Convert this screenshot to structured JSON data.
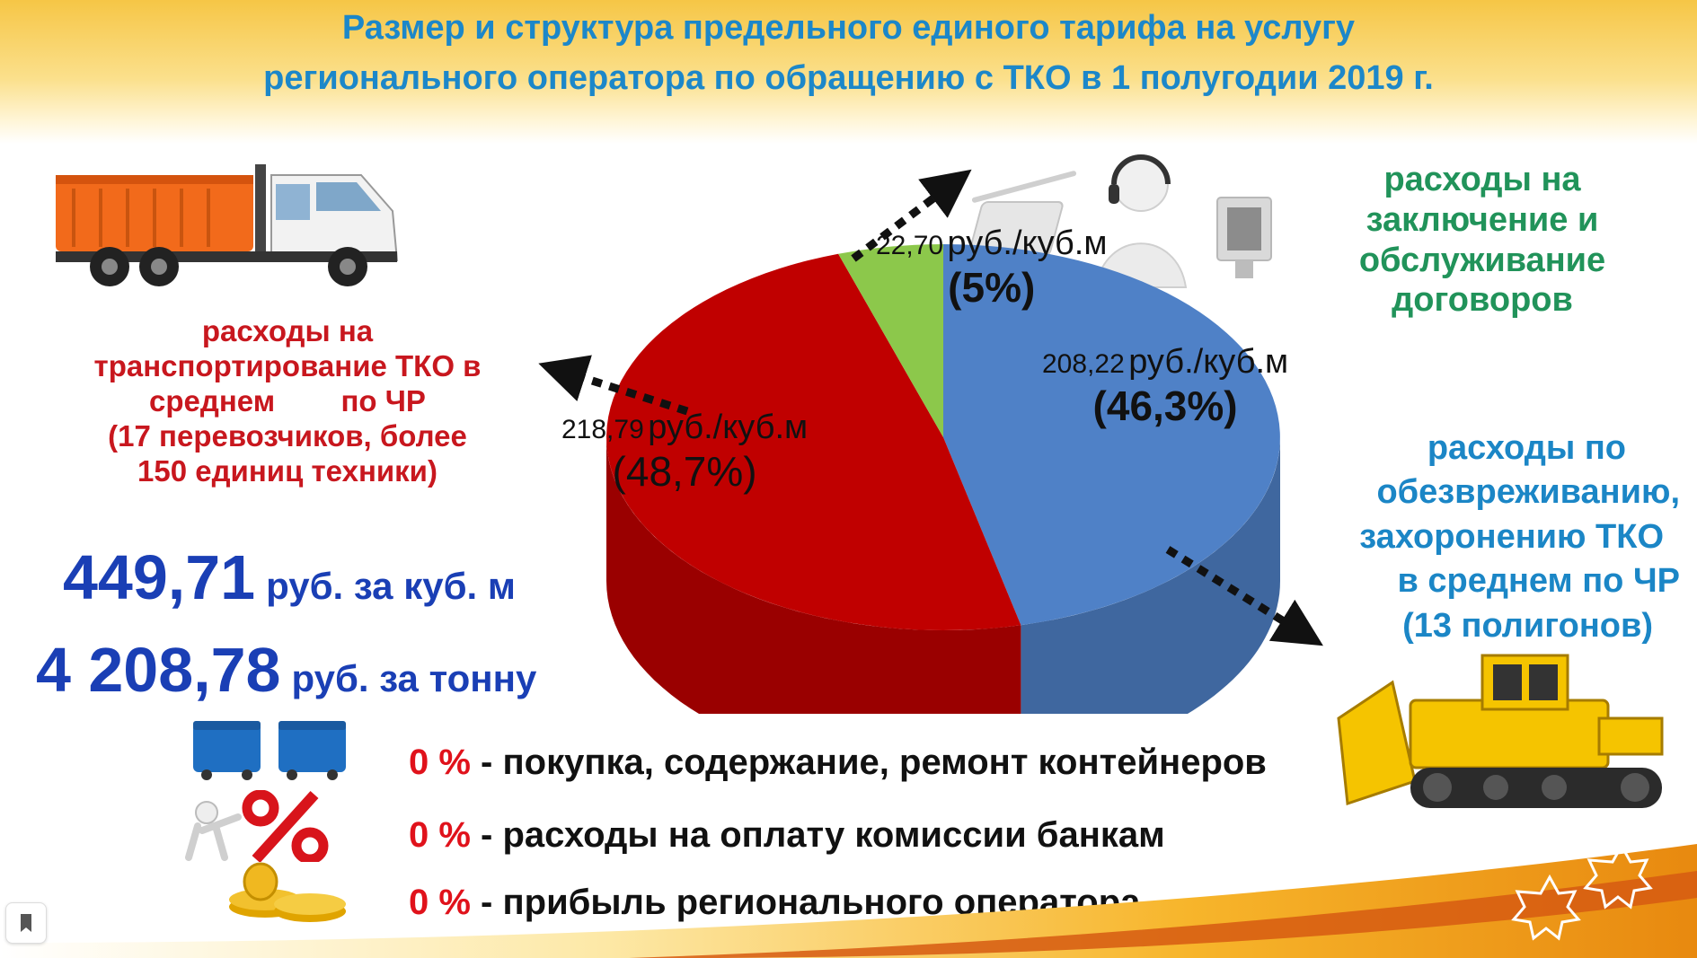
{
  "header": {
    "title_line1": "Размер  и структура предельного единого тарифа на услугу",
    "title_line2": "регионального оператора по обращению с ТКО в 1 полугодии 2019 г."
  },
  "captions": {
    "transport": [
      "расходы на",
      "транспортирование ТКО в",
      "среднем        по ЧР",
      "(17 перевозчиков, более",
      "150 единиц техники)"
    ],
    "contracts": [
      "расходы на",
      "заключение и",
      "обслуживание",
      "договоров"
    ],
    "disposal": [
      "расходы  по",
      "обезвреживанию,",
      "захоронению ТКО",
      "в среднем по ЧР",
      "(13 полигонов)"
    ]
  },
  "totals": {
    "per_cubic_value": "449,71",
    "per_cubic_unit": "руб. за куб. м",
    "per_ton_value": "4 208,78",
    "per_ton_unit": "руб. за тонну"
  },
  "zero_items": [
    {
      "pct": "0 %",
      "text": " - покупка, содержание, ремонт контейнеров"
    },
    {
      "pct": "0 %",
      "text": " - расходы на оплату комиссии банкам"
    },
    {
      "pct": "0 %",
      "text": " - прибыль регионального оператора"
    }
  ],
  "colors": {
    "disposal": "#4f81c7",
    "transport": "#c00000",
    "contracts": "#8cc84b",
    "title": "#1c87c9",
    "accent_red": "#e0121b",
    "big_number": "#1a3fb5"
  },
  "icons": [
    "garbage-truck-icon",
    "call-center-icon",
    "bulldozer-icon",
    "container-icon",
    "percent-icon",
    "coins-icon",
    "bookmark-icon"
  ],
  "chart_data": {
    "type": "pie",
    "title": "",
    "unit": "руб./куб.м",
    "categories": [
      "расходы по обезвреживанию, захоронению ТКО",
      "расходы на транспортирование ТКО",
      "расходы на заключение и обслуживание договоров"
    ],
    "values": [
      208.22,
      218.79,
      22.7
    ],
    "value_labels": [
      "208,22",
      "218,79",
      "22,70"
    ],
    "percent_labels": [
      "(46,3%)",
      "(48,7%)",
      "(5%)"
    ],
    "colors": [
      "#4f81c7",
      "#c00000",
      "#8cc84b"
    ],
    "start_angle_deg": 0,
    "legend": "none"
  }
}
